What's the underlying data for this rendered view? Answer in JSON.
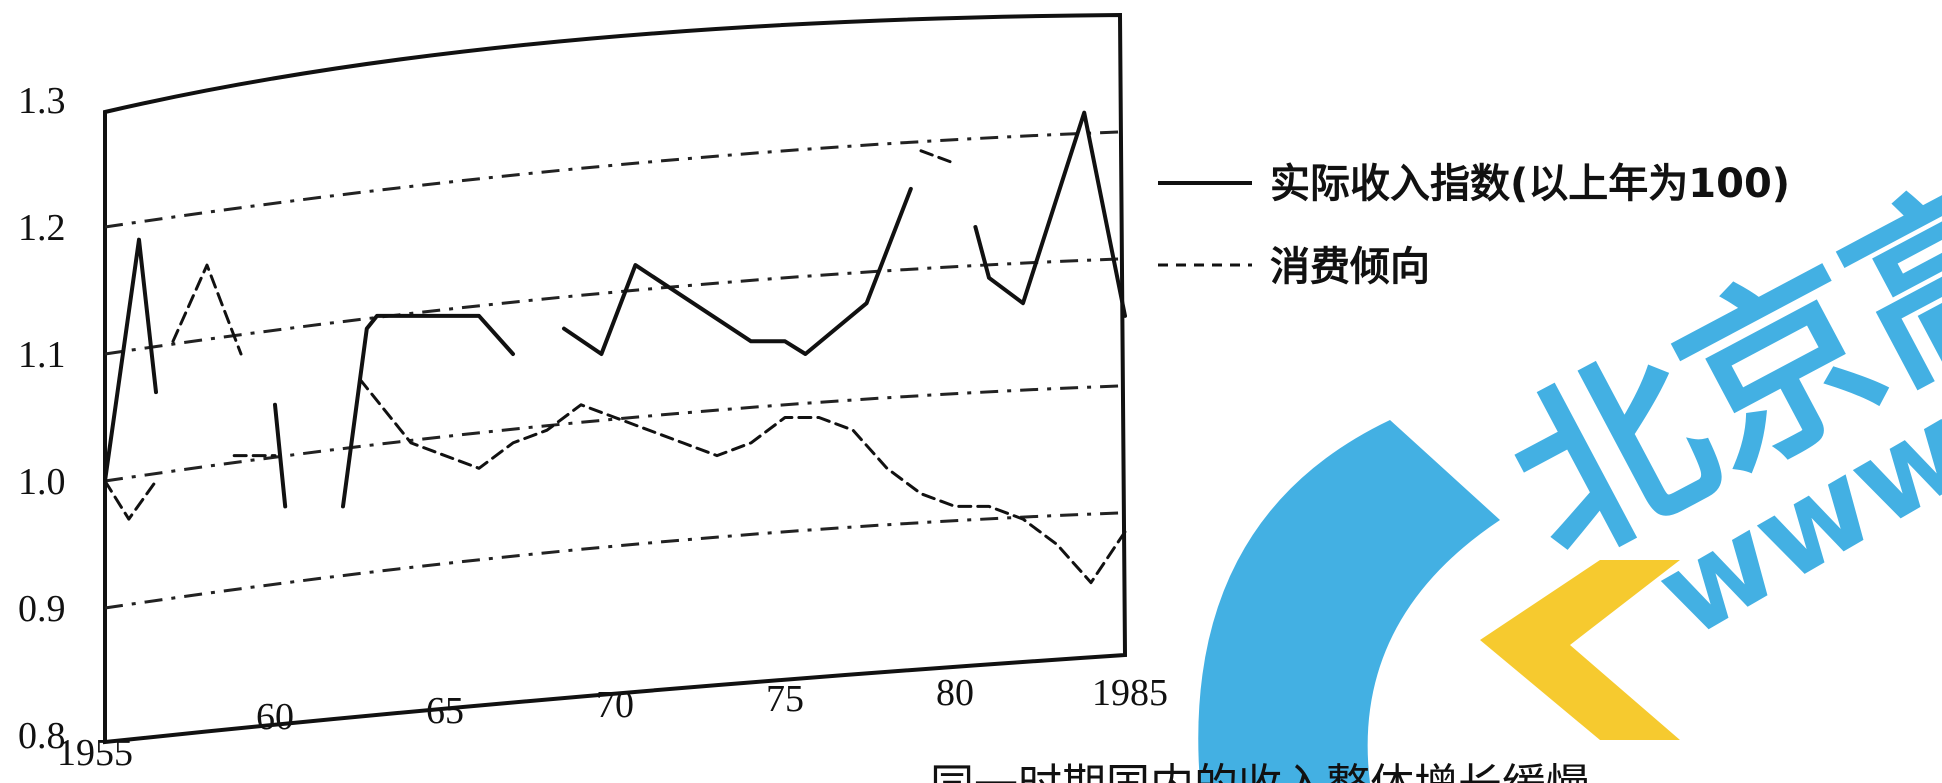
{
  "chart_data": {
    "type": "line",
    "title": "",
    "xlabel": "",
    "ylabel": "",
    "xlim": [
      1955,
      1985
    ],
    "ylim": [
      0.8,
      1.3
    ],
    "x_ticks": [
      {
        "value": 1955,
        "label": "1955"
      },
      {
        "value": 1960,
        "label": "60"
      },
      {
        "value": 1965,
        "label": "65"
      },
      {
        "value": 1970,
        "label": "70"
      },
      {
        "value": 1975,
        "label": "75"
      },
      {
        "value": 1980,
        "label": "80"
      },
      {
        "value": 1985,
        "label": "1985"
      }
    ],
    "y_ticks": [
      {
        "value": 0.8,
        "label": "0.8"
      },
      {
        "value": 0.9,
        "label": "0.9"
      },
      {
        "value": 1.0,
        "label": "1.0"
      },
      {
        "value": 1.1,
        "label": "1.1"
      },
      {
        "value": 1.2,
        "label": "1.2"
      },
      {
        "value": 1.3,
        "label": "1.3"
      }
    ],
    "grid": "dash-dot horizontal lines, slightly rising",
    "legend_position": "right",
    "series": [
      {
        "name": "实际收入指数(以上年为100)",
        "style": "solid",
        "color": "#111111",
        "segments": [
          [
            [
              1955,
              1.0
            ],
            [
              1956,
              1.19
            ],
            [
              1956.5,
              1.07
            ]
          ],
          [
            [
              1960,
              1.06
            ],
            [
              1960.3,
              0.98
            ]
          ],
          [
            [
              1962,
              0.98
            ],
            [
              1962.7,
              1.12
            ],
            [
              1963,
              1.13
            ],
            [
              1966,
              1.13
            ],
            [
              1967,
              1.1
            ]
          ],
          [
            [
              1968.5,
              1.12
            ],
            [
              1969.6,
              1.1
            ],
            [
              1970.6,
              1.17
            ],
            [
              1974,
              1.11
            ],
            [
              1975,
              1.11
            ],
            [
              1975.6,
              1.1
            ],
            [
              1977.4,
              1.14
            ],
            [
              1978.7,
              1.23
            ]
          ],
          [
            [
              1980.6,
              1.2
            ],
            [
              1981,
              1.16
            ],
            [
              1982,
              1.14
            ],
            [
              1982.6,
              1.19
            ],
            [
              1983.8,
              1.29
            ],
            [
              1985,
              1.13
            ]
          ]
        ]
      },
      {
        "name": "消费倾向",
        "style": "dashed",
        "color": "#111111",
        "segments": [
          [
            [
              1955,
              1.0
            ],
            [
              1955.7,
              0.97
            ],
            [
              1956.5,
              1.0
            ]
          ],
          [
            [
              1957,
              1.11
            ],
            [
              1958,
              1.17
            ],
            [
              1959,
              1.1
            ]
          ],
          [
            [
              1958.8,
              1.02
            ],
            [
              1960,
              1.02
            ]
          ],
          [
            [
              1962.5,
              1.08
            ],
            [
              1964,
              1.03
            ],
            [
              1966,
              1.01
            ],
            [
              1967,
              1.03
            ],
            [
              1968,
              1.04
            ],
            [
              1969,
              1.06
            ],
            [
              1970,
              1.05
            ],
            [
              1972,
              1.03
            ],
            [
              1973,
              1.02
            ],
            [
              1974,
              1.03
            ],
            [
              1975,
              1.05
            ],
            [
              1976,
              1.05
            ],
            [
              1977,
              1.04
            ],
            [
              1978,
              1.01
            ],
            [
              1979,
              0.99
            ],
            [
              1980,
              0.98
            ],
            [
              1981,
              0.98
            ],
            [
              1982,
              0.97
            ],
            [
              1983,
              0.95
            ],
            [
              1984,
              0.92
            ],
            [
              1985,
              0.96
            ]
          ],
          [
            [
              1979,
              1.26
            ],
            [
              1980,
              1.25
            ]
          ]
        ]
      }
    ]
  },
  "legend": {
    "items": [
      {
        "label": "实际收入指数(以上年为100)",
        "style": "solid"
      },
      {
        "label": "消费倾向",
        "style": "dashed"
      }
    ]
  },
  "caption_fragment": "同一时期国内的收入整体增长缓慢",
  "watermark": {
    "brand_text": "北京高",
    "url_text": "www.g",
    "colors": {
      "blue": "#2ea7e0",
      "yellow": "#f5c518"
    }
  }
}
